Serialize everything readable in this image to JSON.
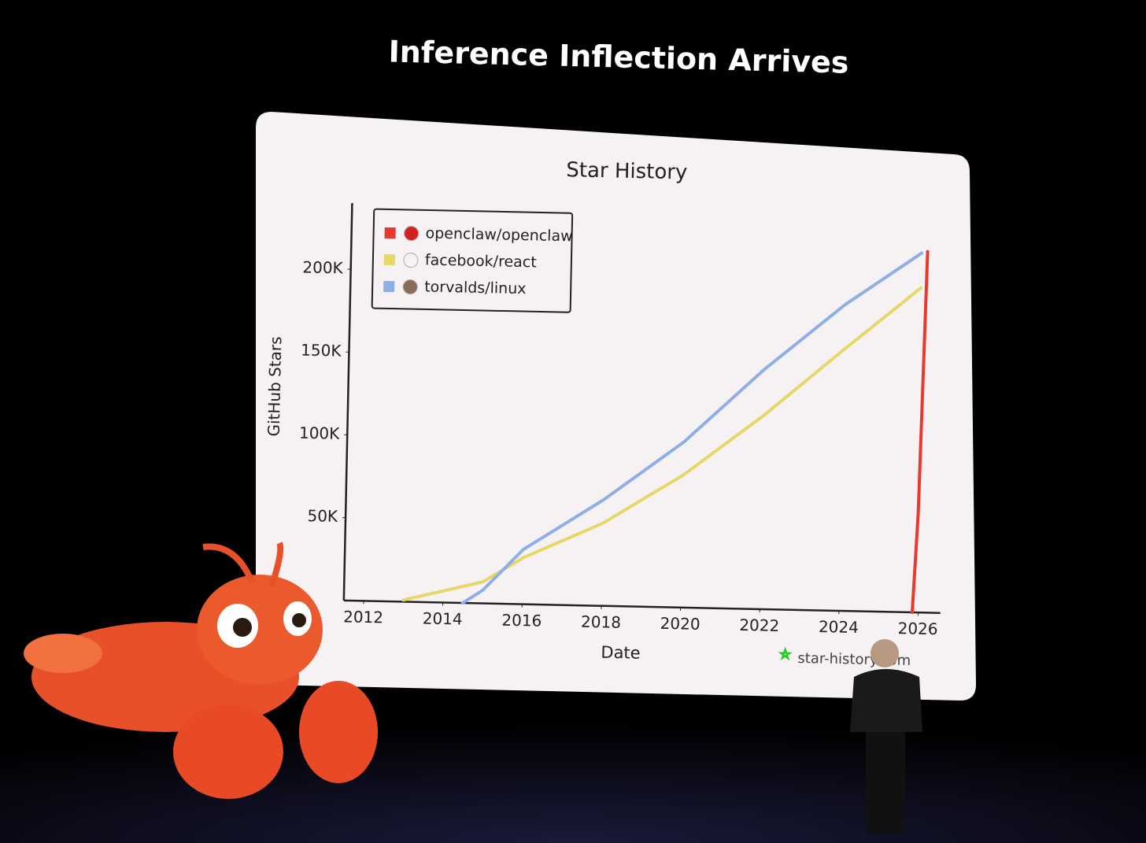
{
  "slide_title": "Inference Inflection Arrives",
  "chart_data": {
    "type": "line",
    "title": "Star History",
    "x_label": "Date",
    "y_label": "GitHub Stars",
    "watermark": "star-history.com",
    "legend": "top-left",
    "grid": false,
    "xlim": [
      2011.5,
      2026.5
    ],
    "xticks": [
      2012,
      2014,
      2016,
      2018,
      2020,
      2022,
      2024,
      2026
    ],
    "ylim": [
      0,
      240000
    ],
    "yticks": [
      {
        "value": 50000,
        "label": "50K"
      },
      {
        "value": 100000,
        "label": "100K"
      },
      {
        "value": 150000,
        "label": "150K"
      },
      {
        "value": 200000,
        "label": "200K"
      }
    ],
    "series": [
      {
        "name": "openclaw/openclaw",
        "color": "#e8382f",
        "x": [
          2025.85,
          2025.95,
          2026.05
        ],
        "values": [
          0,
          60000,
          218000
        ]
      },
      {
        "name": "facebook/react",
        "color": "#e6d766",
        "x": [
          2013,
          2014,
          2015,
          2016,
          2018,
          2020,
          2022,
          2024,
          2025.9
        ],
        "values": [
          1000,
          7000,
          13000,
          28000,
          50000,
          80000,
          117000,
          158000,
          196000
        ]
      },
      {
        "name": "torvalds/linux",
        "color": "#8eafe6",
        "x": [
          2014.5,
          2015,
          2016,
          2018,
          2020,
          2022,
          2024,
          2025.9
        ],
        "values": [
          0,
          8000,
          33000,
          64000,
          100000,
          145000,
          185000,
          217000
        ]
      }
    ]
  }
}
